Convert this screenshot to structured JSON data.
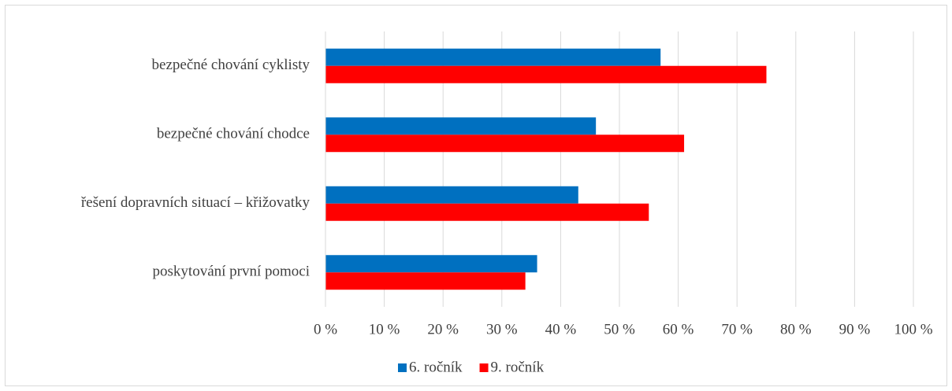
{
  "chart_data": {
    "type": "hbar",
    "categories": [
      "bezpečné chování cyklisty",
      "bezpečné chování chodce",
      "řešení dopravních situací – křižovatky",
      "poskytování první pomoci"
    ],
    "series": [
      {
        "name": "6. ročník",
        "color": "#0070c0",
        "values": [
          57,
          46,
          43,
          36
        ]
      },
      {
        "name": "9. ročník",
        "color": "#ff0000",
        "values": [
          75,
          61,
          55,
          34
        ]
      }
    ],
    "xlim": [
      0,
      100
    ],
    "xticks": [
      {
        "value": 0,
        "label": "0 %"
      },
      {
        "value": 10,
        "label": "10 %"
      },
      {
        "value": 20,
        "label": "20 %"
      },
      {
        "value": 30,
        "label": "30 %"
      },
      {
        "value": 40,
        "label": "40 %"
      },
      {
        "value": 50,
        "label": "50 %"
      },
      {
        "value": 60,
        "label": "60 %"
      },
      {
        "value": 70,
        "label": "70 %"
      },
      {
        "value": 80,
        "label": "80 %"
      },
      {
        "value": 90,
        "label": "90 %"
      },
      {
        "value": 100,
        "label": "100 %"
      }
    ],
    "grid": true,
    "legend": "bottom"
  }
}
